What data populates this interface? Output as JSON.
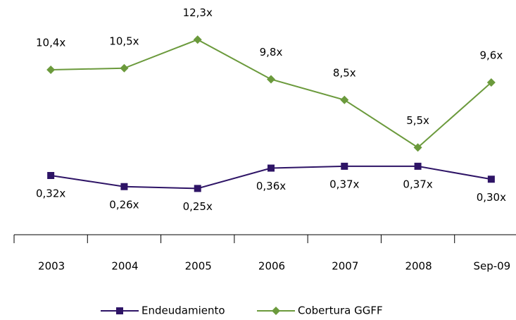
{
  "chart_data": {
    "type": "line",
    "categories": [
      "2003",
      "2004",
      "2005",
      "2006",
      "2007",
      "2008",
      "Sep-09"
    ],
    "series": [
      {
        "name": "Endeudamiento",
        "color": "#2e1466",
        "axis": "y2",
        "values": [
          0.32,
          0.26,
          0.25,
          0.36,
          0.37,
          0.37,
          0.3
        ],
        "value_labels": [
          "0,32x",
          "0,26x",
          "0,25x",
          "0,36x",
          "0,37x",
          "0,37x",
          "0,30x"
        ]
      },
      {
        "name": "Cobertura GGFF",
        "color": "#6b9a3c",
        "values": [
          10.4,
          10.5,
          12.3,
          9.8,
          8.5,
          5.5,
          9.6
        ],
        "value_labels": [
          "10,4x",
          "10,5x",
          "12,3x",
          "9,8x",
          "8,5x",
          "5,5x",
          "9,6x"
        ]
      }
    ],
    "ylim": [
      0,
      14
    ],
    "y2lim": [
      0,
      1.2
    ],
    "legend": "bottom"
  }
}
